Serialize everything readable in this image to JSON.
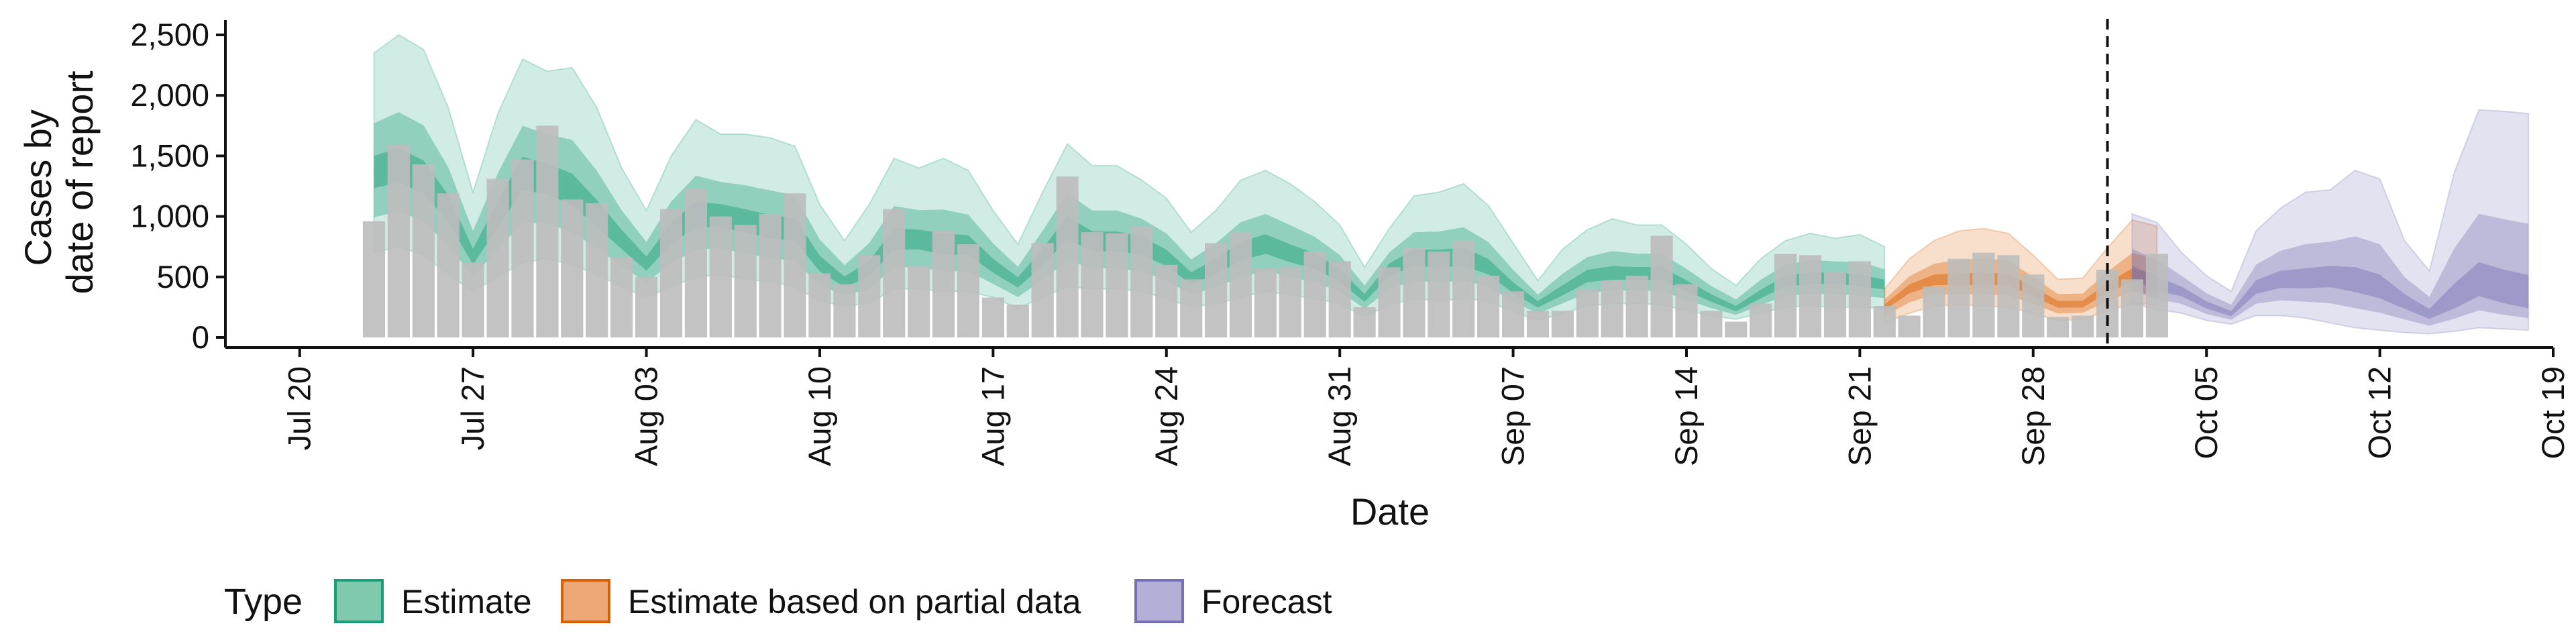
{
  "chart_data": {
    "type": "bar",
    "xlabel": "Date",
    "ylabel": [
      "Cases by",
      "date of report"
    ],
    "ylim": [
      0,
      2600
    ],
    "yticks": [
      0,
      500,
      1000,
      1500,
      2000,
      2500
    ],
    "ytick_labels": [
      "0",
      "500",
      "1,000",
      "1,500",
      "2,000",
      "2,500"
    ],
    "xlim": [
      "2020-07-17",
      "2020-10-19"
    ],
    "xticks": [
      "2020-07-20",
      "2020-07-27",
      "2020-08-03",
      "2020-08-10",
      "2020-08-17",
      "2020-08-24",
      "2020-08-31",
      "2020-09-07",
      "2020-09-14",
      "2020-09-21",
      "2020-09-28",
      "2020-10-05",
      "2020-10-12",
      "2020-10-19"
    ],
    "xtick_labels": [
      "Jul 20",
      "Jul 27",
      "Aug 03",
      "Aug 10",
      "Aug 17",
      "Aug 24",
      "Aug 31",
      "Sep 07",
      "Sep 14",
      "Sep 21",
      "Sep 28",
      "Oct 05",
      "Oct 12",
      "Oct 19"
    ],
    "vline_date": "2020-10-01",
    "legend": {
      "title": "Type",
      "position": "bottom-left",
      "entries": [
        {
          "label": "Estimate",
          "fill": "#7fcaae",
          "stroke": "#1b9e77"
        },
        {
          "label": "Estimate based on partial data",
          "fill": "#eda877",
          "stroke": "#d95f02"
        },
        {
          "label": "Forecast",
          "fill": "#b3afd6",
          "stroke": "#7570b3"
        }
      ]
    },
    "colors": {
      "bars": "#bdbdbd",
      "estimate": "#1b9e77",
      "partial": "#d95f02",
      "forecast": "#7570b3",
      "vline": "#111111"
    },
    "reported_cases": {
      "start": "2020-07-23",
      "values": [
        960,
        1590,
        1430,
        1190,
        620,
        1310,
        1470,
        1750,
        1140,
        1110,
        660,
        500,
        1060,
        1230,
        1000,
        930,
        1020,
        1190,
        530,
        440,
        680,
        1060,
        590,
        880,
        770,
        330,
        270,
        780,
        1330,
        870,
        860,
        920,
        600,
        480,
        780,
        870,
        570,
        580,
        710,
        630,
        250,
        580,
        740,
        710,
        800,
        510,
        380,
        220,
        220,
        400,
        470,
        510,
        840,
        440,
        220,
        130,
        280,
        690,
        680,
        540,
        630,
        260,
        180,
        420,
        650,
        700,
        680,
        520,
        170,
        180,
        560,
        480,
        690
      ]
    },
    "estimate_series": [
      {
        "type": "Estimate",
        "start": "2020-07-23",
        "median": [
          1350,
          1400,
          1300,
          1050,
          650,
          1000,
          1350,
          1300,
          1200,
          1000,
          800,
          600,
          850,
          1000,
          1000,
          950,
          900,
          880,
          600,
          450,
          550,
          800,
          800,
          750,
          750,
          580,
          450,
          650,
          900,
          780,
          780,
          750,
          650,
          480,
          580,
          700,
          760,
          680,
          620,
          500,
          320,
          560,
          650,
          640,
          650,
          570,
          400,
          270,
          380,
          500,
          520,
          520,
          520,
          420,
          320,
          230,
          350,
          460,
          480,
          490,
          460,
          430
        ],
        "lower90": [
          700,
          750,
          680,
          520,
          380,
          500,
          620,
          650,
          600,
          520,
          420,
          330,
          420,
          500,
          520,
          480,
          460,
          420,
          300,
          260,
          280,
          400,
          400,
          380,
          380,
          330,
          240,
          330,
          420,
          400,
          400,
          380,
          320,
          250,
          280,
          330,
          380,
          350,
          320,
          280,
          170,
          270,
          320,
          300,
          320,
          300,
          210,
          140,
          200,
          260,
          280,
          280,
          270,
          220,
          180,
          150,
          200,
          250,
          260,
          250,
          250,
          240
        ],
        "upper90": [
          2350,
          2500,
          2380,
          1900,
          1200,
          1850,
          2300,
          2200,
          2230,
          1900,
          1400,
          1050,
          1500,
          1800,
          1680,
          1680,
          1650,
          1580,
          1100,
          800,
          1100,
          1480,
          1400,
          1480,
          1380,
          1050,
          770,
          1200,
          1600,
          1420,
          1420,
          1300,
          1150,
          870,
          1050,
          1300,
          1380,
          1270,
          1120,
          930,
          580,
          900,
          1170,
          1200,
          1270,
          1090,
          780,
          470,
          730,
          890,
          980,
          930,
          930,
          770,
          570,
          430,
          650,
          800,
          860,
          820,
          850,
          750
        ]
      },
      {
        "type": "Estimate based on partial data",
        "start": "2020-09-22",
        "median": [
          250,
          400,
          470,
          470,
          470,
          470,
          370,
          270,
          270,
          400,
          500,
          450
        ],
        "lower90": [
          120,
          200,
          260,
          270,
          260,
          250,
          200,
          140,
          150,
          220,
          280,
          270
        ],
        "upper90": [
          400,
          650,
          800,
          880,
          900,
          860,
          680,
          480,
          490,
          740,
          970,
          920
        ]
      },
      {
        "type": "Forecast",
        "start": "2020-10-02",
        "median": [
          520,
          420,
          370,
          260,
          190,
          400,
          460,
          460,
          480,
          440,
          380,
          280,
          180,
          280,
          400,
          330,
          280
        ],
        "lower90": [
          280,
          230,
          200,
          140,
          110,
          180,
          180,
          160,
          120,
          80,
          60,
          40,
          30,
          50,
          80,
          70,
          60
        ],
        "upper90": [
          1020,
          950,
          700,
          510,
          380,
          880,
          1070,
          1200,
          1220,
          1380,
          1310,
          800,
          550,
          1360,
          1880,
          1870,
          1850
        ]
      }
    ]
  }
}
